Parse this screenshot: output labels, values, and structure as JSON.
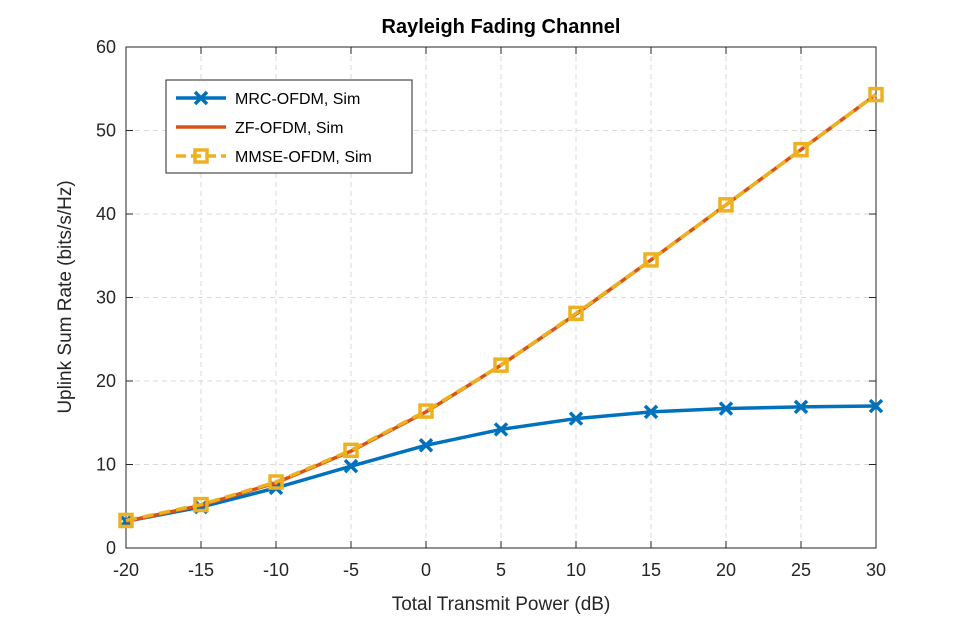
{
  "chart_data": {
    "type": "line",
    "title": "Rayleigh Fading Channel",
    "xlabel": "Total Transmit Power (dB)",
    "ylabel": "Uplink Sum Rate (bits/s/Hz)",
    "xlim": [
      -20,
      30
    ],
    "ylim": [
      0,
      60
    ],
    "xticks": [
      -20,
      -15,
      -10,
      -5,
      0,
      5,
      10,
      15,
      20,
      25,
      30
    ],
    "yticks": [
      0,
      10,
      20,
      30,
      40,
      50,
      60
    ],
    "grid": true,
    "legend_position": "top-left",
    "x": [
      -20,
      -15,
      -10,
      -5,
      0,
      5,
      10,
      15,
      20,
      25,
      30
    ],
    "series": [
      {
        "name": "MRC-OFDM, Sim",
        "values": [
          3.2,
          4.9,
          7.2,
          9.8,
          12.3,
          14.2,
          15.5,
          16.3,
          16.7,
          16.9,
          17.0
        ],
        "color": "#0072BD",
        "marker": "x",
        "line_style": "solid"
      },
      {
        "name": "ZF-OFDM, Sim",
        "values": [
          3.2,
          5.1,
          7.8,
          11.6,
          16.3,
          21.9,
          28.0,
          34.5,
          41.1,
          47.7,
          54.3
        ],
        "color": "#D95319",
        "marker": "none",
        "line_style": "solid"
      },
      {
        "name": "MMSE-OFDM, Sim",
        "values": [
          3.3,
          5.2,
          7.9,
          11.7,
          16.4,
          21.9,
          28.1,
          34.5,
          41.1,
          47.7,
          54.3
        ],
        "color": "#EDB120",
        "marker": "square",
        "line_style": "dashed"
      }
    ]
  }
}
